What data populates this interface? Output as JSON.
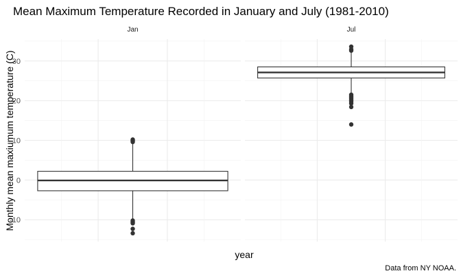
{
  "chart_data": {
    "type": "boxplot",
    "title": "Mean Maximum Temperature Recorded in January and July (1981-2010)",
    "xlabel": "year",
    "ylabel": "Monthly mean maxiumum temperature (C)",
    "caption": "Data from NY NOAA.",
    "ylim": [
      -15.5,
      35.5
    ],
    "y_ticks": [
      -10,
      0,
      10,
      20,
      30
    ],
    "y_tick_labels": [
      "-10",
      "0",
      "10",
      "20",
      "30"
    ],
    "grid": true,
    "facets": [
      {
        "label": "Jan",
        "box": {
          "q1": -2.7,
          "median": -0.1,
          "q3": 2.2,
          "whisker_low": -10.0,
          "whisker_high": 9.4
        },
        "outliers": [
          10.2,
          10.0,
          9.8,
          9.6,
          -10.2,
          -10.5,
          -10.7,
          -10.9,
          -12.3,
          -13.4
        ]
      },
      {
        "label": "Jul",
        "box": {
          "q1": 25.7,
          "median": 27.1,
          "q3": 28.5,
          "whisker_low": 21.8,
          "whisker_high": 32.3
        },
        "outliers": [
          33.6,
          32.9,
          32.6,
          21.5,
          21.2,
          20.9,
          20.6,
          20.3,
          20.0,
          19.7,
          19.3,
          18.4,
          14.0
        ]
      }
    ]
  }
}
